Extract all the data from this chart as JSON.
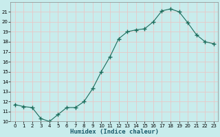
{
  "x": [
    0,
    1,
    2,
    3,
    4,
    5,
    6,
    7,
    8,
    9,
    10,
    11,
    12,
    13,
    14,
    15,
    16,
    17,
    18,
    19,
    20,
    21,
    22,
    23
  ],
  "y": [
    11.7,
    11.5,
    11.4,
    10.3,
    10.0,
    10.7,
    11.4,
    11.4,
    12.0,
    13.3,
    15.0,
    16.5,
    18.3,
    19.0,
    19.2,
    19.3,
    20.0,
    21.1,
    21.3,
    21.0,
    19.9,
    18.7,
    18.0,
    17.8
  ],
  "xlabel": "Humidex (Indice chaleur)",
  "xlim": [
    -0.5,
    23.5
  ],
  "ylim": [
    10,
    22
  ],
  "yticks": [
    10,
    11,
    12,
    13,
    14,
    15,
    16,
    17,
    18,
    19,
    20,
    21
  ],
  "xticks": [
    0,
    1,
    2,
    3,
    4,
    5,
    6,
    7,
    8,
    9,
    10,
    11,
    12,
    13,
    14,
    15,
    16,
    17,
    18,
    19,
    20,
    21,
    22,
    23
  ],
  "line_color": "#1a6b5a",
  "marker": "+",
  "marker_size": 4,
  "bg_color": "#c8ecec",
  "grid_color": "#e8c8c8",
  "tick_fontsize": 5,
  "xlabel_fontsize": 6.5,
  "xlabel_fontweight": "bold"
}
